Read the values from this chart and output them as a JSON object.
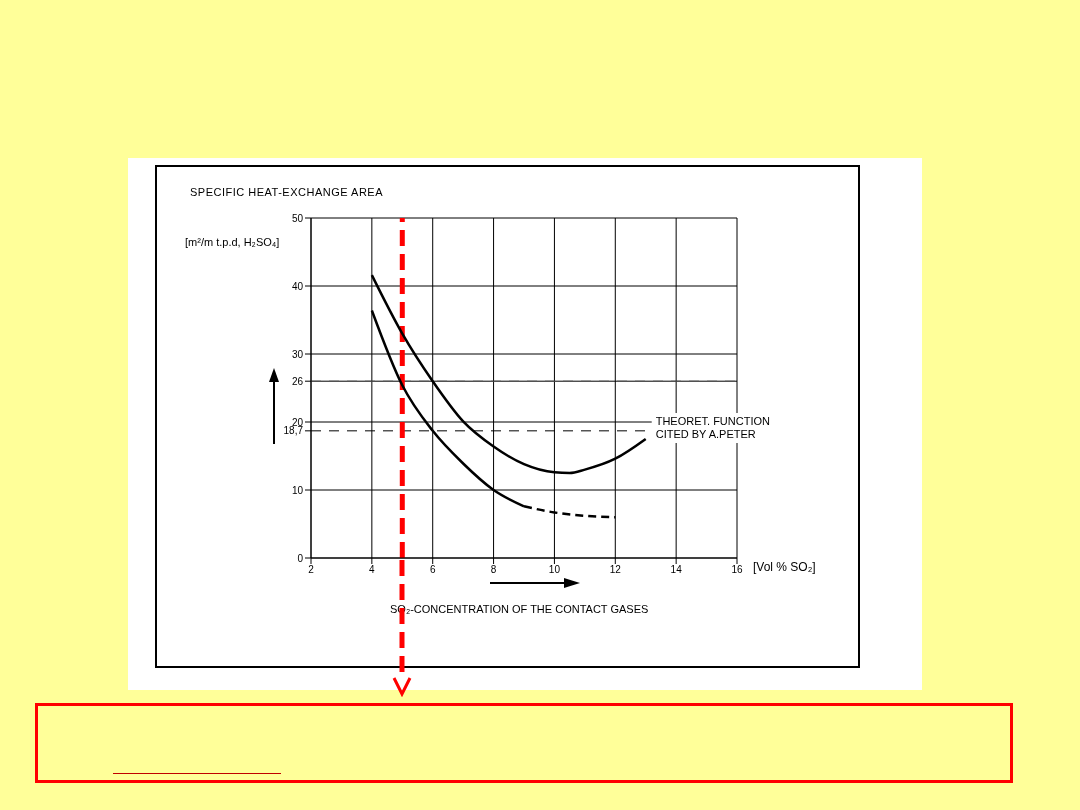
{
  "chart_data": {
    "type": "line",
    "title": "SPECIFIC HEAT-EXCHANGE AREA",
    "ylabel": "[m²/m t.p.d, H₂SO₄]",
    "xlabel": "SO₂-CONCENTRATION OF THE CONTACT GASES",
    "annotations": [
      "[Vol % SO₂]"
    ],
    "xlim": [
      2,
      16
    ],
    "xticks": [
      2,
      4,
      6,
      8,
      10,
      12,
      14,
      16
    ],
    "ylim": [
      0,
      50
    ],
    "yticks": [
      0,
      10,
      {
        "value": 18.7,
        "label": "18,7"
      },
      20,
      26,
      30,
      40,
      50
    ],
    "grid": true,
    "legend": false,
    "marker": "none",
    "series": [
      {
        "name": "THEORET. FUNCTION CITED BY A.PETER",
        "color": "#000000",
        "line_style": "solid",
        "x": [
          4,
          5,
          6,
          7,
          8,
          9,
          10,
          10.5,
          11,
          12,
          13
        ],
        "values": [
          41.6,
          33.0,
          26.0,
          20.1,
          16.4,
          13.8,
          12.6,
          12.5,
          13.0,
          14.6,
          17.5
        ]
      },
      {
        "color": "#000000",
        "line_style": "solid",
        "x": [
          4,
          5,
          6,
          7,
          8,
          9
        ],
        "values": [
          36.4,
          25.4,
          18.7,
          13.9,
          10.0,
          7.6
        ]
      },
      {
        "color": "#000000",
        "line_style": "dashed",
        "x": [
          9,
          10,
          11,
          12
        ],
        "values": [
          7.6,
          6.7,
          6.2,
          6.0
        ]
      }
    ],
    "ref_lines": [
      {
        "axis": "y",
        "value": 26,
        "color": "#555555",
        "line_style": "dashed"
      },
      {
        "axis": "y",
        "value": 18.7,
        "color": "#000000",
        "line_style": "dashed"
      },
      {
        "axis": "x",
        "value": 5,
        "color": "#ff0000",
        "line_style": "dashed"
      }
    ]
  }
}
